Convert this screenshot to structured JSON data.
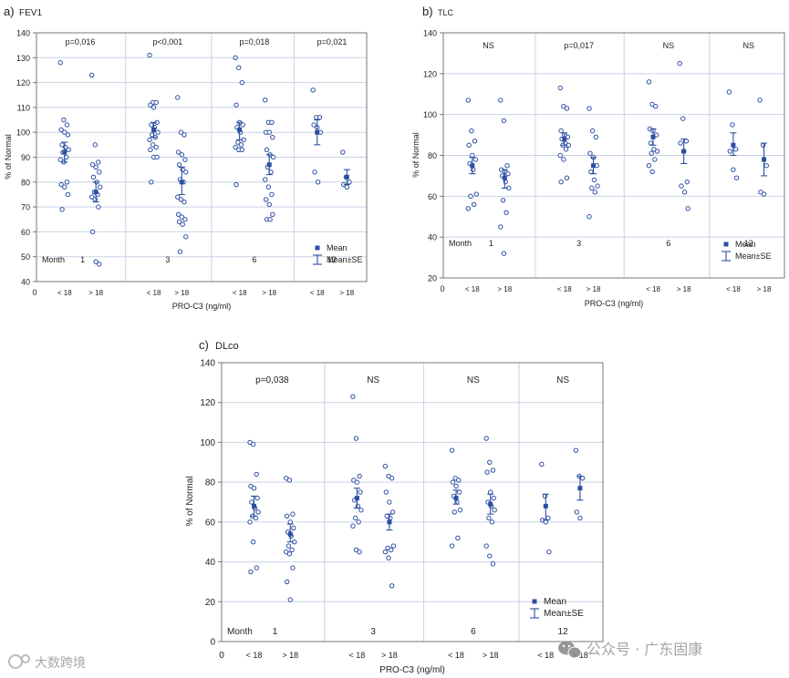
{
  "panels": [
    {
      "panel_label": "a)",
      "title": "FEV1"
    },
    {
      "panel_label": "b)",
      "title": "TLC"
    },
    {
      "panel_label": "c)",
      "title": "DLco"
    }
  ],
  "colors": {
    "marker": "#2c4fa3",
    "frame": "#777777",
    "grid": "#c9d2e6"
  },
  "icons": {
    "watermark_left": "dataeye-logo-icon",
    "watermark_right": "wechat-logo-icon"
  },
  "watermark": {
    "left_text": "大数跨境",
    "right_text": "公众号 · 广东固康"
  },
  "chart_data": [
    {
      "type": "scatter",
      "title": "FEV1",
      "ylabel": "% of Normal",
      "xlabel": "PRO-C3 (ng/ml)",
      "ylim": [
        40,
        140
      ],
      "yticks": [
        40,
        50,
        60,
        70,
        80,
        90,
        100,
        110,
        120,
        130,
        140
      ],
      "xlim": [
        0,
        9
      ],
      "x_zero_label": "0",
      "month_label": "Month",
      "months": [
        "1",
        "3",
        "6",
        "12"
      ],
      "group_labels": [
        "< 18",
        "> 18"
      ],
      "pvalues": [
        "p=0,016",
        "p<0,001",
        "p=0,018",
        "p=0,021"
      ],
      "legend": {
        "mean": "Mean",
        "se": "Mean±SE",
        "position": "bottom-right"
      },
      "groups": [
        {
          "month": "1",
          "group": "< 18",
          "mean": 92,
          "se_low": 88,
          "se_high": 96,
          "points": [
            128,
            105,
            103,
            101,
            100,
            99,
            95,
            94,
            93,
            92,
            90,
            89,
            88,
            80,
            79,
            78,
            75,
            69
          ]
        },
        {
          "month": "1",
          "group": "> 18",
          "mean": 76,
          "se_low": 72,
          "se_high": 80,
          "points": [
            123,
            95,
            88,
            87,
            86,
            84,
            82,
            80,
            78,
            76,
            75,
            74,
            73,
            70,
            60,
            48,
            47
          ]
        },
        {
          "month": "3",
          "group": "< 18",
          "mean": 101,
          "se_low": 98,
          "se_high": 104,
          "points": [
            131,
            112,
            112,
            111,
            110,
            104,
            103,
            102,
            100,
            99,
            98,
            97,
            95,
            94,
            93,
            90,
            90,
            80
          ]
        },
        {
          "month": "3",
          "group": "> 18",
          "mean": 80,
          "se_low": 75,
          "se_high": 86,
          "points": [
            114,
            100,
            99,
            92,
            91,
            89,
            87,
            85,
            84,
            81,
            80,
            74,
            73,
            72,
            67,
            66,
            65,
            64,
            63,
            58,
            52
          ]
        },
        {
          "month": "6",
          "group": "< 18",
          "mean": 101,
          "se_low": 97,
          "se_high": 104,
          "points": [
            130,
            126,
            120,
            111,
            104,
            103,
            102,
            100,
            97,
            96,
            95,
            94,
            93,
            93,
            79
          ]
        },
        {
          "month": "6",
          "group": "> 18",
          "mean": 87,
          "se_low": 83,
          "se_high": 91,
          "points": [
            113,
            104,
            104,
            100,
            100,
            98,
            93,
            91,
            90,
            86,
            84,
            81,
            78,
            75,
            73,
            71,
            67,
            65,
            65
          ]
        },
        {
          "month": "12",
          "group": "< 18",
          "mean": 100,
          "se_low": 95,
          "se_high": 105,
          "points": [
            117,
            106,
            106,
            103,
            102,
            100,
            84,
            80
          ]
        },
        {
          "month": "12",
          "group": "> 18",
          "mean": 82,
          "se_low": 79,
          "se_high": 85,
          "points": [
            92,
            82,
            80,
            79,
            78
          ]
        }
      ]
    },
    {
      "type": "scatter",
      "title": "TLC",
      "ylabel": "% of Normal",
      "xlabel": "PRO-C3 (ng/ml)",
      "ylim": [
        20,
        140
      ],
      "yticks": [
        20,
        40,
        60,
        80,
        100,
        120,
        140
      ],
      "xlim": [
        0,
        9
      ],
      "x_zero_label": "0",
      "month_label": "Month",
      "months": [
        "1",
        "3",
        "6",
        "12"
      ],
      "group_labels": [
        "< 18",
        "> 18"
      ],
      "pvalues": [
        "NS",
        "p=0,017",
        "NS",
        "NS"
      ],
      "legend": {
        "mean": "Mean",
        "se": "Mean±SE",
        "position": "bottom-right"
      },
      "groups": [
        {
          "month": "1",
          "group": "< 18",
          "mean": 75,
          "se_low": 71,
          "se_high": 79,
          "points": [
            107,
            92,
            87,
            85,
            80,
            78,
            76,
            73,
            61,
            60,
            56,
            54
          ]
        },
        {
          "month": "1",
          "group": "> 18",
          "mean": 69,
          "se_low": 64,
          "se_high": 73,
          "points": [
            107,
            97,
            75,
            73,
            72,
            71,
            70,
            67,
            64,
            58,
            52,
            45,
            32
          ]
        },
        {
          "month": "3",
          "group": "< 18",
          "mean": 88,
          "se_low": 85,
          "se_high": 91,
          "points": [
            113,
            104,
            103,
            92,
            90,
            89,
            88,
            86,
            85,
            85,
            83,
            80,
            78,
            69,
            67
          ]
        },
        {
          "month": "3",
          "group": "> 18",
          "mean": 75,
          "se_low": 71,
          "se_high": 79,
          "points": [
            103,
            92,
            89,
            81,
            79,
            75,
            72,
            68,
            65,
            64,
            62,
            50
          ]
        },
        {
          "month": "6",
          "group": "< 18",
          "mean": 89,
          "se_low": 85,
          "se_high": 93,
          "points": [
            116,
            105,
            104,
            93,
            92,
            90,
            86,
            83,
            82,
            81,
            78,
            75,
            72
          ]
        },
        {
          "month": "6",
          "group": "> 18",
          "mean": 82,
          "se_low": 76,
          "se_high": 88,
          "points": [
            125,
            98,
            87,
            86,
            82,
            67,
            65,
            62,
            54
          ]
        },
        {
          "month": "12",
          "group": "< 18",
          "mean": 85,
          "se_low": 80,
          "se_high": 91,
          "points": [
            111,
            95,
            83,
            82,
            73,
            69
          ]
        },
        {
          "month": "12",
          "group": "> 18",
          "mean": 78,
          "se_low": 70,
          "se_high": 86,
          "points": [
            107,
            85,
            75,
            62,
            61
          ]
        }
      ]
    },
    {
      "type": "scatter",
      "title": "DLco",
      "ylabel": "% of Normal",
      "xlabel": "PRO-C3 (ng/ml)",
      "ylim": [
        0,
        140
      ],
      "yticks": [
        0,
        20,
        40,
        60,
        80,
        100,
        120,
        140
      ],
      "xlim": [
        0,
        9
      ],
      "x_zero_label": "0",
      "month_label": "Month",
      "months": [
        "1",
        "3",
        "6",
        "12"
      ],
      "group_labels": [
        "< 18",
        "> 18"
      ],
      "pvalues": [
        "p=0,038",
        "NS",
        "NS",
        "NS"
      ],
      "legend": {
        "mean": "Mean",
        "se": "Mean±SE",
        "position": "bottom-right"
      },
      "groups": [
        {
          "month": "1",
          "group": "< 18",
          "mean": 68,
          "se_low": 63,
          "se_high": 73,
          "points": [
            100,
            99,
            84,
            78,
            77,
            72,
            70,
            67,
            65,
            63,
            62,
            60,
            50,
            37,
            35
          ]
        },
        {
          "month": "1",
          "group": "> 18",
          "mean": 54,
          "se_low": 50,
          "se_high": 59,
          "points": [
            82,
            81,
            64,
            63,
            60,
            57,
            55,
            53,
            50,
            48,
            46,
            45,
            44,
            37,
            30,
            21
          ]
        },
        {
          "month": "3",
          "group": "< 18",
          "mean": 72,
          "se_low": 67,
          "se_high": 77,
          "points": [
            123,
            102,
            83,
            81,
            80,
            75,
            71,
            68,
            66,
            62,
            60,
            58,
            46,
            45
          ]
        },
        {
          "month": "3",
          "group": "> 18",
          "mean": 60,
          "se_low": 56,
          "se_high": 64,
          "points": [
            88,
            83,
            82,
            75,
            70,
            65,
            63,
            62,
            48,
            47,
            46,
            45,
            42,
            28
          ]
        },
        {
          "month": "6",
          "group": "< 18",
          "mean": 72,
          "se_low": 69,
          "se_high": 76,
          "points": [
            96,
            82,
            81,
            80,
            78,
            75,
            73,
            70,
            66,
            65,
            52,
            48
          ]
        },
        {
          "month": "6",
          "group": "> 18",
          "mean": 69,
          "se_low": 64,
          "se_high": 74,
          "points": [
            102,
            90,
            86,
            85,
            75,
            72,
            70,
            68,
            66,
            62,
            60,
            48,
            43,
            39
          ]
        },
        {
          "month": "12",
          "group": "< 18",
          "mean": 68,
          "se_low": 61,
          "se_high": 74,
          "points": [
            89,
            73,
            62,
            61,
            60,
            45
          ]
        },
        {
          "month": "12",
          "group": "> 18",
          "mean": 77,
          "se_low": 71,
          "se_high": 83,
          "points": [
            96,
            83,
            82,
            65,
            62
          ]
        }
      ]
    }
  ]
}
